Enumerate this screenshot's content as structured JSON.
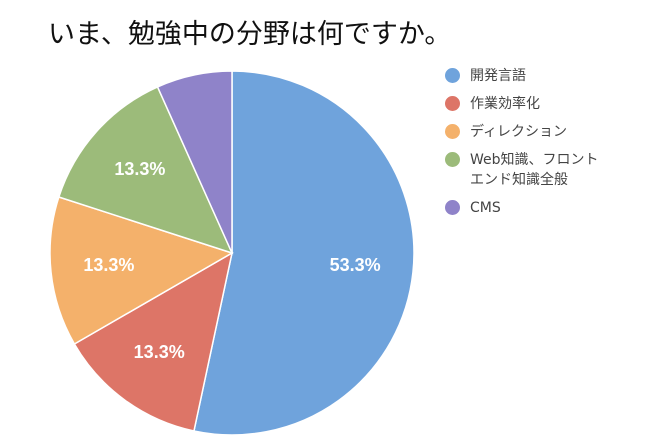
{
  "title": "いま、勉強中の分野は何ですか。",
  "colors": {
    "blue": "#6fa3dc",
    "red": "#dd7567",
    "orange": "#f4b16b",
    "green": "#9cbb7a",
    "purple": "#8f83c9"
  },
  "chart_data": {
    "type": "pie",
    "title": "いま、勉強中の分野は何ですか。",
    "slices": [
      {
        "label": "開発言語",
        "value": 53.3,
        "color": "#6fa3dc",
        "data_label": "53.3%"
      },
      {
        "label": "作業効率化",
        "value": 13.3,
        "color": "#dd7567",
        "data_label": "13.3%"
      },
      {
        "label": "ディレクション",
        "value": 13.3,
        "color": "#f4b16b",
        "data_label": "13.3%"
      },
      {
        "label": "Web知識、フロントエンド知識全般",
        "value": 13.3,
        "color": "#9cbb7a",
        "data_label": "13.3%"
      },
      {
        "label": "CMS",
        "value": 6.7,
        "color": "#8f83c9",
        "data_label": ""
      }
    ],
    "legend": {
      "placement": "right",
      "items": [
        {
          "lines": [
            "開発言語"
          ],
          "color": "#6fa3dc"
        },
        {
          "lines": [
            "作業効率化"
          ],
          "color": "#dd7567"
        },
        {
          "lines": [
            "ディレクション"
          ],
          "color": "#f4b16b"
        },
        {
          "lines": [
            "Web知識、フロント",
            "エンド知識全般"
          ],
          "color": "#9cbb7a"
        },
        {
          "lines": [
            "CMS"
          ],
          "color": "#8f83c9"
        }
      ]
    }
  }
}
